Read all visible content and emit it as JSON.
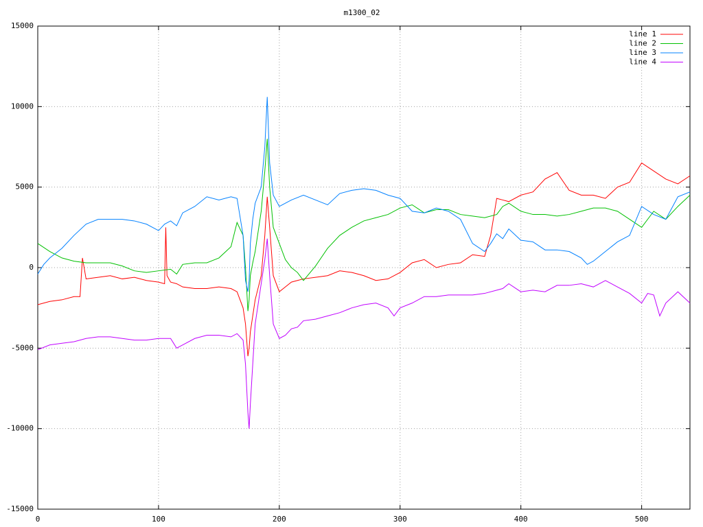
{
  "chart_data": {
    "type": "line",
    "title": "m1300_02",
    "xlim": [
      0,
      540
    ],
    "xticks": [
      0,
      100,
      200,
      300,
      400,
      500
    ],
    "ylim": [
      -15000,
      15000
    ],
    "yticks": [
      -15000,
      -10000,
      -5000,
      0,
      5000,
      10000,
      15000
    ],
    "grid": true,
    "legend": "top-right",
    "series": [
      {
        "name": "line 1",
        "color": "#ff0000",
        "x": [
          0,
          10,
          20,
          30,
          35,
          37,
          40,
          50,
          60,
          70,
          80,
          90,
          100,
          105,
          106,
          107,
          110,
          115,
          120,
          130,
          140,
          150,
          160,
          165,
          170,
          172,
          174,
          175,
          176,
          178,
          180,
          185,
          188,
          190,
          192,
          195,
          200,
          205,
          210,
          215,
          220,
          230,
          240,
          250,
          260,
          270,
          280,
          290,
          300,
          310,
          320,
          330,
          340,
          350,
          360,
          370,
          375,
          380,
          385,
          390,
          400,
          410,
          420,
          430,
          440,
          450,
          460,
          470,
          480,
          490,
          500,
          510,
          520,
          530,
          540
        ],
        "values": [
          -2300,
          -2100,
          -2000,
          -1800,
          -1800,
          600,
          -700,
          -600,
          -500,
          -700,
          -600,
          -800,
          -900,
          -1000,
          2500,
          -500,
          -900,
          -1000,
          -1200,
          -1300,
          -1300,
          -1200,
          -1300,
          -1500,
          -2500,
          -3500,
          -5500,
          -5000,
          -4000,
          -3000,
          -2000,
          -500,
          2000,
          4400,
          2500,
          -500,
          -1500,
          -1200,
          -900,
          -800,
          -700,
          -600,
          -500,
          -200,
          -300,
          -500,
          -800,
          -700,
          -300,
          300,
          500,
          0,
          200,
          300,
          800,
          700,
          2000,
          4300,
          4200,
          4100,
          4500,
          4700,
          5500,
          5900,
          4800,
          4500,
          4500,
          4300,
          5000,
          5300,
          6500,
          6000,
          5500,
          5200,
          5700
        ]
      },
      {
        "name": "line 2",
        "color": "#00c000",
        "x": [
          0,
          10,
          20,
          30,
          40,
          50,
          60,
          70,
          80,
          90,
          100,
          110,
          115,
          120,
          130,
          140,
          150,
          160,
          165,
          170,
          172,
          174,
          175,
          176,
          178,
          180,
          185,
          188,
          190,
          192,
          195,
          200,
          205,
          210,
          215,
          220,
          230,
          240,
          250,
          260,
          270,
          280,
          290,
          300,
          310,
          320,
          330,
          340,
          350,
          360,
          370,
          380,
          385,
          390,
          400,
          410,
          420,
          430,
          440,
          450,
          460,
          470,
          480,
          490,
          500,
          510,
          520,
          530,
          540
        ],
        "values": [
          1500,
          1000,
          600,
          400,
          300,
          300,
          300,
          100,
          -200,
          -300,
          -200,
          -100,
          -400,
          200,
          300,
          300,
          600,
          1300,
          2800,
          2000,
          0,
          -2700,
          -2000,
          -500,
          300,
          1000,
          3500,
          6000,
          8000,
          5000,
          2500,
          1500,
          500,
          0,
          -300,
          -800,
          100,
          1200,
          2000,
          2500,
          2900,
          3100,
          3300,
          3700,
          3900,
          3400,
          3600,
          3600,
          3300,
          3200,
          3100,
          3300,
          3800,
          4000,
          3500,
          3300,
          3300,
          3200,
          3300,
          3500,
          3700,
          3700,
          3500,
          3000,
          2500,
          3500,
          3000,
          3800,
          4500
        ]
      },
      {
        "name": "line 3",
        "color": "#0080ff",
        "x": [
          0,
          5,
          10,
          20,
          30,
          40,
          50,
          60,
          70,
          80,
          90,
          100,
          105,
          110,
          115,
          120,
          130,
          140,
          150,
          160,
          165,
          170,
          172,
          174,
          175,
          176,
          178,
          180,
          185,
          188,
          190,
          192,
          195,
          200,
          210,
          220,
          230,
          240,
          250,
          260,
          270,
          280,
          290,
          300,
          310,
          320,
          330,
          340,
          350,
          360,
          370,
          375,
          380,
          385,
          390,
          400,
          410,
          420,
          430,
          440,
          450,
          455,
          460,
          470,
          480,
          490,
          500,
          510,
          520,
          530,
          540
        ],
        "values": [
          -400,
          200,
          600,
          1200,
          2000,
          2700,
          3000,
          3000,
          3000,
          2900,
          2700,
          2300,
          2700,
          2900,
          2600,
          3400,
          3800,
          4400,
          4200,
          4400,
          4300,
          2000,
          -800,
          -1500,
          -800,
          1500,
          3000,
          4000,
          5000,
          7500,
          10600,
          6500,
          4500,
          3800,
          4200,
          4500,
          4200,
          3900,
          4600,
          4800,
          4900,
          4800,
          4500,
          4300,
          3500,
          3400,
          3700,
          3500,
          3000,
          1500,
          1000,
          1500,
          2100,
          1800,
          2400,
          1700,
          1600,
          1100,
          1100,
          1000,
          600,
          200,
          400,
          1000,
          1600,
          2000,
          3800,
          3300,
          3000,
          4400,
          4700
        ]
      },
      {
        "name": "line 4",
        "color": "#c000ff",
        "x": [
          0,
          10,
          20,
          30,
          40,
          50,
          60,
          70,
          80,
          90,
          100,
          110,
          115,
          120,
          130,
          140,
          150,
          160,
          165,
          170,
          172,
          174,
          175,
          176,
          178,
          180,
          185,
          188,
          190,
          192,
          195,
          200,
          205,
          210,
          215,
          220,
          230,
          240,
          250,
          260,
          270,
          280,
          290,
          295,
          300,
          310,
          320,
          330,
          340,
          350,
          360,
          370,
          380,
          385,
          390,
          400,
          410,
          420,
          430,
          440,
          450,
          460,
          470,
          480,
          490,
          500,
          505,
          510,
          515,
          520,
          530,
          540
        ],
        "values": [
          -5100,
          -4800,
          -4700,
          -4600,
          -4400,
          -4300,
          -4300,
          -4400,
          -4500,
          -4500,
          -4400,
          -4400,
          -5000,
          -4800,
          -4400,
          -4200,
          -4200,
          -4300,
          -4100,
          -4500,
          -6000,
          -9000,
          -10000,
          -8500,
          -6000,
          -3500,
          -1000,
          500,
          1800,
          -500,
          -3500,
          -4400,
          -4200,
          -3800,
          -3700,
          -3300,
          -3200,
          -3000,
          -2800,
          -2500,
          -2300,
          -2200,
          -2500,
          -3000,
          -2500,
          -2200,
          -1800,
          -1800,
          -1700,
          -1700,
          -1700,
          -1600,
          -1400,
          -1300,
          -1000,
          -1500,
          -1400,
          -1500,
          -1100,
          -1100,
          -1000,
          -1200,
          -800,
          -1200,
          -1600,
          -2200,
          -1600,
          -1700,
          -3000,
          -2200,
          -1500,
          -2200
        ]
      }
    ]
  }
}
